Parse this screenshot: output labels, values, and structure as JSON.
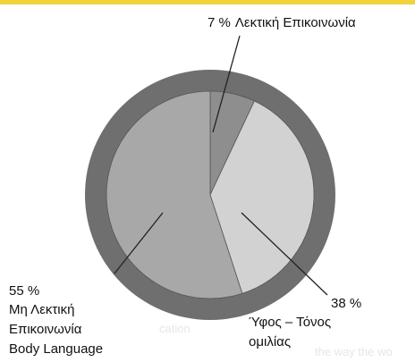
{
  "chart_data": {
    "type": "pie",
    "categories": [
      [
        "Λεκτική Επικοινωνία"
      ],
      [
        "Ύφος – Τόνος",
        "ομιλίας"
      ],
      [
        "Μη Λεκτική",
        "Επικοινωνία",
        "Body Language"
      ]
    ],
    "values": [
      7,
      38,
      55
    ],
    "value_labels": [
      "7 %",
      "38 %",
      "55 %"
    ],
    "colors": [
      "#8e8e8e",
      "#d2d2d2",
      "#a8a8a8"
    ]
  },
  "background_text": [
    "cation",
    "the way the wo"
  ]
}
